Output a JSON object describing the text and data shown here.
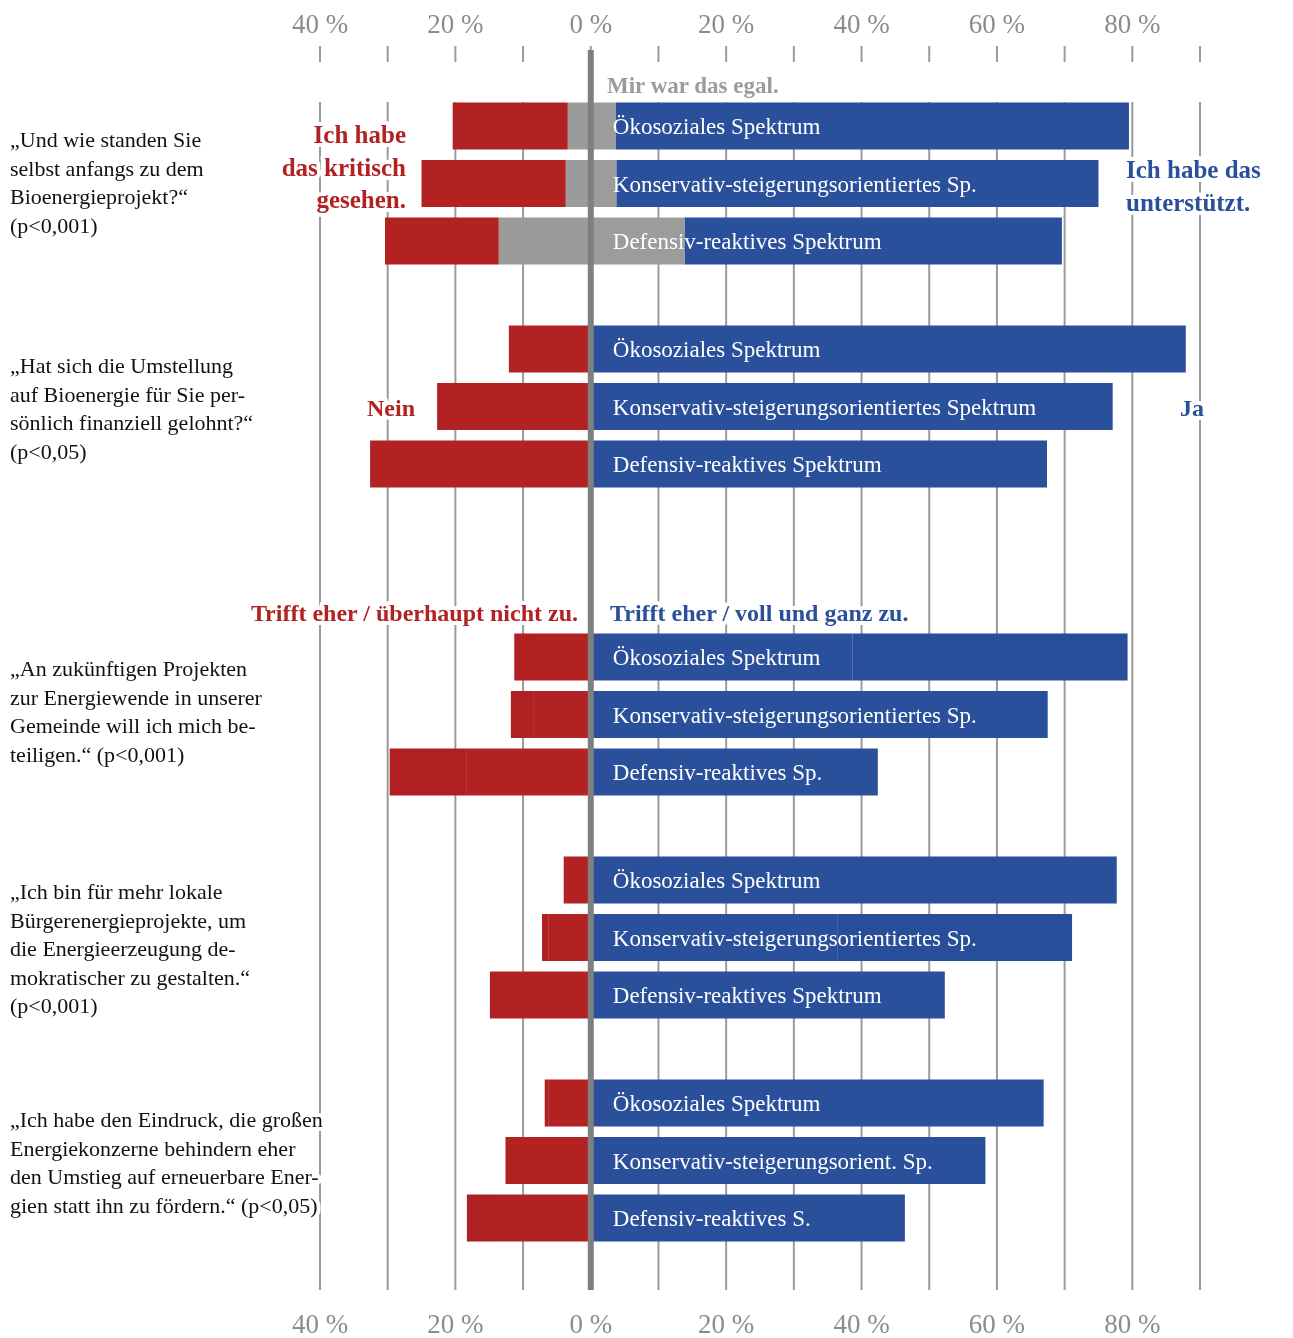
{
  "chart_data": {
    "type": "bar",
    "orientation": "horizontal",
    "stacked": true,
    "grid": "x",
    "categories": [
      "Ökosoziales Spektrum",
      "Konservativ-steigerungsorientiertes Sp.",
      "Defensiv-reaktives Spektrum",
      "Ökosoziales Spektrum",
      "Konservativ-steigerungsorientiertes Spektrum",
      "Defensiv-reaktives Spektrum",
      "Ökosoziales Spektrum",
      "Konservativ-steigerungsorientiertes Sp.",
      "Defensiv-reaktives Sp.",
      "Ökosoziales Spektrum",
      "Konservativ-steigerungsorientiertes Sp.",
      "Defensiv-reaktives Spektrum",
      "Ökosoziales Spektrum",
      "Konservativ-steigerungsorient. Sp.",
      "Defensiv-reaktives S."
    ],
    "series": [
      {
        "color": "#9b9b9b",
        "values": [
          -3.4,
          -3.7,
          -13.6,
          null,
          null,
          null,
          null,
          null,
          null,
          null,
          null,
          null,
          null,
          null,
          null
        ]
      },
      {
        "color": "#b22222",
        "values": [
          -17.0,
          -21.3,
          -16.8,
          -12.1,
          -22.7,
          -32.6,
          -7.8,
          -8.4,
          -18.3,
          -4.0,
          -6.2,
          -14.9,
          -6.2,
          -12.6,
          -13.7
        ]
      },
      {
        "color": "#b01f21",
        "values": [
          null,
          null,
          null,
          null,
          null,
          null,
          -3.5,
          -3.4,
          -11.4,
          null,
          -1.0,
          null,
          -0.6,
          null,
          -4.6
        ]
      },
      {
        "color": "#9c9c9c",
        "values": [
          3.7,
          3.8,
          13.9,
          null,
          null,
          null,
          null,
          null,
          null,
          null,
          null,
          null,
          null,
          null,
          null
        ]
      },
      {
        "color": "#2a4f9b",
        "values": [
          75.8,
          71.2,
          55.7,
          87.9,
          77.1,
          67.4,
          38.7,
          67.5,
          42.4,
          77.7,
          36.5,
          52.3,
          66.9,
          58.3,
          46.4
        ]
      },
      {
        "color": "#294e99",
        "values": [
          null,
          null,
          null,
          null,
          null,
          null,
          40.6,
          null,
          null,
          null,
          34.6,
          null,
          null,
          null,
          null
        ]
      }
    ],
    "xlim": [
      -40,
      90
    ],
    "xticks": [
      {
        "value": -40,
        "label": "40 %"
      },
      {
        "value": -30,
        "label": null
      },
      {
        "value": -20,
        "label": "20 %"
      },
      {
        "value": -10,
        "label": null
      },
      {
        "value": 0,
        "label": "0 %"
      },
      {
        "value": 10,
        "label": null
      },
      {
        "value": 20,
        "label": "20 %"
      },
      {
        "value": 30,
        "label": null
      },
      {
        "value": 40,
        "label": "40 %"
      },
      {
        "value": 50,
        "label": null
      },
      {
        "value": 60,
        "label": "60 %"
      },
      {
        "value": 70,
        "label": null
      },
      {
        "value": 80,
        "label": "80 %"
      },
      {
        "value": 90,
        "label": null
      }
    ],
    "x2lim": [
      -40,
      90
    ],
    "x2ticks": [
      {
        "value": -40,
        "label": "40 %"
      },
      {
        "value": -30,
        "label": null
      },
      {
        "value": -20,
        "label": "20 %"
      },
      {
        "value": -10,
        "label": null
      },
      {
        "value": 0,
        "label": "0 %"
      },
      {
        "value": 10,
        "label": null
      },
      {
        "value": 20,
        "label": "20 %"
      },
      {
        "value": 30,
        "label": null
      },
      {
        "value": 40,
        "label": "40 %"
      },
      {
        "value": 50,
        "label": null
      },
      {
        "value": 60,
        "label": "60 %"
      },
      {
        "value": 70,
        "label": null
      },
      {
        "value": 80,
        "label": "80 %"
      },
      {
        "value": 90,
        "label": null
      }
    ],
    "annotations": [
      "„Und wie standen Sie\nselbst anfangs zu dem\nBioenergieprojekt?“\n(p<0,001)",
      "„Hat sich die Umstellung\nauf Bioenergie für Sie per-\nsönlich finanziell gelohnt?“\n(p<0,05)",
      "„An zukünftigen Projekten\nzur Energiewende in unserer\nGemeinde will ich mich be-\nteiligen.“ (p<0,001)",
      "„Ich bin für mehr lokale\nBürgerenergieprojekte, um\ndie Energieerzeugung de-\nmokratischer zu gestalten.“\n(p<0,001)",
      "„Ich habe den Eindruck, die großen\nEnergiekonzerne behindern eher\nden Umstieg auf erneuerbare Ener-\ngien statt ihn zu fördern.“ (p<0,05)",
      "Mir war das egal.",
      "Ich habe\ndas kritisch\ngesehen.",
      "Ich habe das\nunterstützt.",
      "Nein",
      "Ja",
      "Trifft eher / überhaupt nicht zu.",
      "Trifft eher / voll und ganz zu."
    ]
  }
}
